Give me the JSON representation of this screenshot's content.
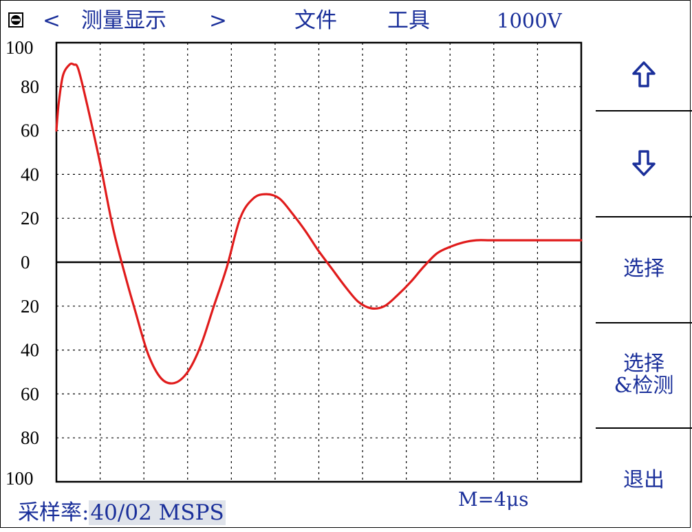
{
  "menu": {
    "prev_arrow": "<",
    "title": "测量显示",
    "next_arrow": ">",
    "file": "文件",
    "tools": "工具",
    "voltage": "1000V"
  },
  "side": {
    "up_icon": "up-arrow-icon",
    "down_icon": "down-arrow-icon",
    "select": "选择",
    "select_detect_line1": "选择",
    "select_detect_line2": "&检测",
    "exit": "退出"
  },
  "status": {
    "rate_label": "采样率:",
    "rate_value": "40/02 MSPS",
    "time_div": "M=4μs"
  },
  "colors": {
    "text": "#1a2f9a",
    "waveform": "#e01b1b",
    "grid": "#000000"
  },
  "chart_data": {
    "type": "line",
    "title": "",
    "xlabel": "",
    "ylabel": "",
    "ylim": [
      -100,
      100
    ],
    "xlim": [
      0,
      12
    ],
    "grid": true,
    "y_ticks": [
      {
        "value": 100,
        "label": "100"
      },
      {
        "value": 80,
        "label": "80"
      },
      {
        "value": 60,
        "label": "60"
      },
      {
        "value": 40,
        "label": "40"
      },
      {
        "value": 20,
        "label": "20"
      },
      {
        "value": 0,
        "label": "0"
      },
      {
        "value": -20,
        "label": "20"
      },
      {
        "value": -40,
        "label": "40"
      },
      {
        "value": -60,
        "label": "60"
      },
      {
        "value": -80,
        "label": "80"
      },
      {
        "value": -100,
        "label": "100"
      }
    ],
    "series": [
      {
        "x": [
          0,
          0.05,
          0.15,
          0.3,
          0.4,
          0.5,
          0.7,
          1.0,
          1.3,
          1.6,
          1.8,
          2.1,
          2.4,
          2.7,
          3.0,
          3.3,
          3.6,
          3.9,
          4.2,
          4.5,
          4.8,
          5.1,
          5.4,
          5.7,
          6.0,
          6.3,
          6.6,
          6.9,
          7.2,
          7.5,
          7.8,
          8.1,
          8.4,
          8.7,
          9.0,
          9.3,
          9.6,
          9.9,
          10.2,
          10.5,
          10.8,
          11.1,
          11.4,
          11.7,
          12.0
        ],
        "y": [
          60,
          72,
          85,
          90,
          90,
          88,
          72,
          45,
          15,
          -8,
          -22,
          -42,
          -53,
          -55,
          -50,
          -38,
          -20,
          -2,
          20,
          29,
          31,
          29,
          22,
          14,
          5,
          -3,
          -11,
          -18,
          -21,
          -20,
          -15,
          -9,
          -2,
          4,
          7,
          9,
          10,
          10,
          10,
          10,
          10,
          10,
          10,
          10,
          10
        ]
      }
    ]
  }
}
